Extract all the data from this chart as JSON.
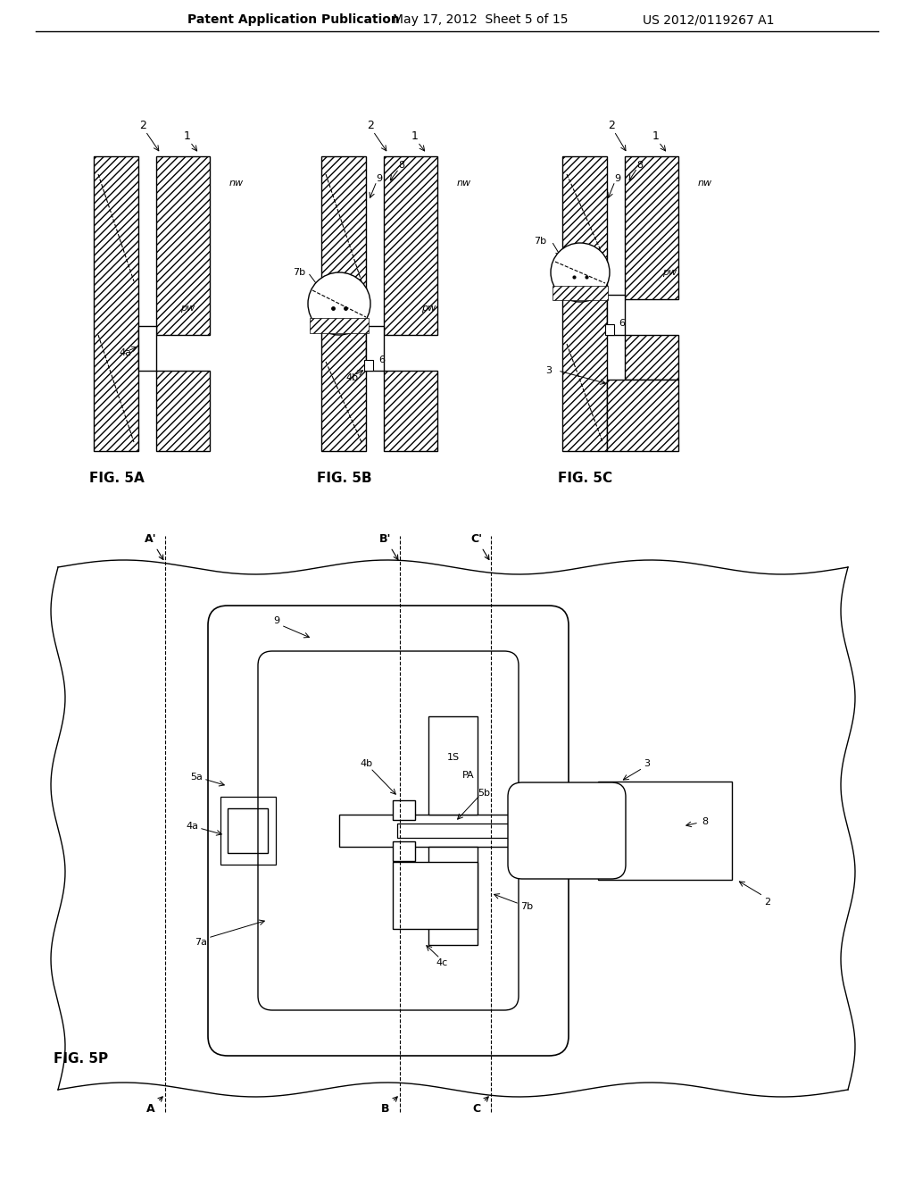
{
  "bg_color": "#ffffff",
  "header_text": "Patent Application Publication",
  "header_date": "May 17, 2012  Sheet 5 of 15",
  "header_patent": "US 2012/0119267 A1",
  "fig5A_label": "FIG. 5A",
  "fig5B_label": "FIG. 5B",
  "fig5C_label": "FIG. 5C",
  "fig5P_label": "FIG. 5P"
}
